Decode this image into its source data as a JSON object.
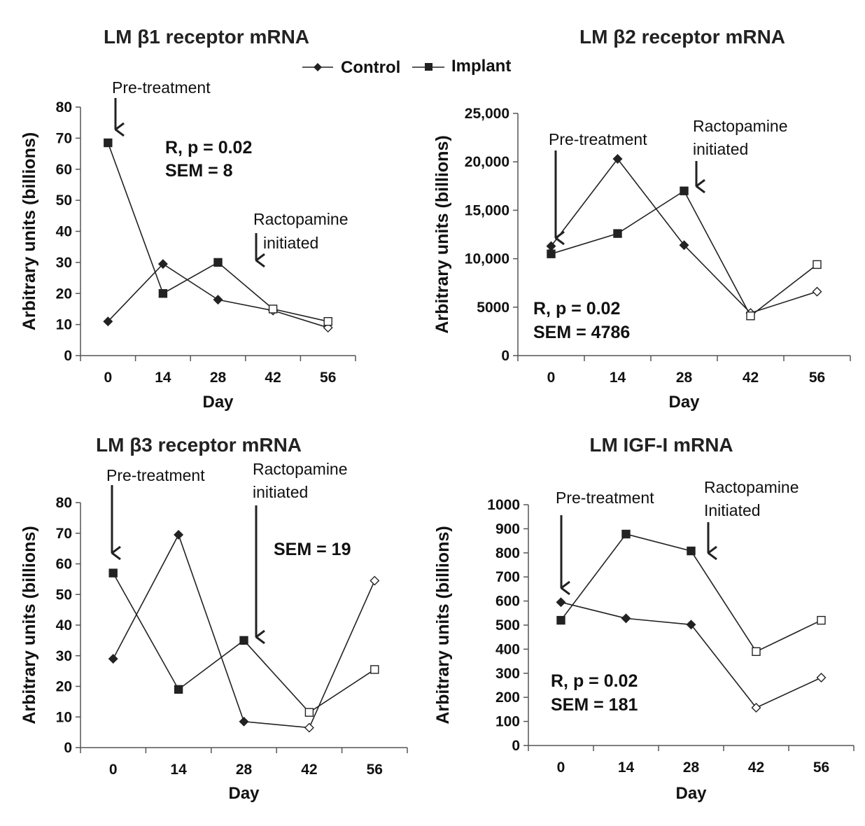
{
  "legend": {
    "entries": [
      {
        "name": "Control",
        "marker": "diamond"
      },
      {
        "name": "Implant",
        "marker": "square"
      }
    ]
  },
  "chart_data": [
    {
      "type": "line",
      "title": "LM β1 receptor mRNA",
      "xlabel": "Day",
      "ylabel": "Arbitrary units (billions)",
      "x": [
        0,
        14,
        28,
        42,
        56
      ],
      "xlim": [
        -7,
        63
      ],
      "ylim": [
        0,
        80
      ],
      "yticks": [
        0,
        10,
        20,
        30,
        40,
        50,
        60,
        70,
        80
      ],
      "ytick_labels": [
        "0",
        "10",
        "20",
        "30",
        "40",
        "50",
        "60",
        "70",
        "80"
      ],
      "series": [
        {
          "name": "Control",
          "marker": "diamond",
          "values": [
            11,
            29.5,
            18,
            14.5,
            9
          ]
        },
        {
          "name": "Implant",
          "marker": "square",
          "values": [
            68.5,
            20,
            30,
            15,
            11
          ]
        }
      ],
      "annotations": [
        {
          "lines": [
            "Pre-treatment"
          ],
          "x": 0,
          "type": "arrow"
        },
        {
          "lines": [
            "Ractopamine",
            "initiated"
          ],
          "x": 31,
          "type": "arrow"
        }
      ],
      "stats": [
        "R, p = 0.02",
        "SEM = 8"
      ]
    },
    {
      "type": "line",
      "title": "LM β2 receptor mRNA",
      "xlabel": "Day",
      "ylabel": "Arbitrary units (billions)",
      "x": [
        0,
        14,
        28,
        42,
        56
      ],
      "xlim": [
        -7,
        63
      ],
      "ylim": [
        0,
        25000
      ],
      "yticks": [
        0,
        5000,
        10000,
        15000,
        20000,
        25000
      ],
      "ytick_labels": [
        "0",
        "5000",
        "10,000",
        "15,000",
        "20,000",
        "25,000"
      ],
      "series": [
        {
          "name": "Control",
          "marker": "diamond",
          "values": [
            11300,
            20300,
            11400,
            4400,
            6600
          ]
        },
        {
          "name": "Implant",
          "marker": "square",
          "values": [
            10500,
            12600,
            17000,
            4100,
            9400
          ]
        }
      ],
      "annotations": [
        {
          "lines": [
            "Pre-treatment"
          ],
          "x": 0,
          "type": "arrow"
        },
        {
          "lines": [
            "Ractopamine",
            "initiated"
          ],
          "x": 31,
          "type": "arrow"
        }
      ],
      "stats": [
        "R, p = 0.02",
        "SEM = 4786"
      ]
    },
    {
      "type": "line",
      "title": "LM β3 receptor mRNA",
      "xlabel": "Day",
      "ylabel": "Arbitrary units (billions)",
      "x": [
        0,
        14,
        28,
        42,
        56
      ],
      "xlim": [
        -7,
        63
      ],
      "ylim": [
        0,
        80
      ],
      "yticks": [
        0,
        10,
        20,
        30,
        40,
        50,
        60,
        70,
        80
      ],
      "ytick_labels": [
        "0",
        "10",
        "20",
        "30",
        "40",
        "50",
        "60",
        "70",
        "80"
      ],
      "series": [
        {
          "name": "Control",
          "marker": "diamond",
          "values": [
            29,
            69.5,
            8.5,
            6.5,
            54.5
          ]
        },
        {
          "name": "Implant",
          "marker": "square",
          "values": [
            57,
            19,
            35,
            11.5,
            25.5
          ]
        }
      ],
      "annotations": [
        {
          "lines": [
            "Pre-treatment"
          ],
          "x": 0,
          "type": "arrow"
        },
        {
          "lines": [
            "Ractopamine",
            "initiated"
          ],
          "x": 31,
          "type": "arrow"
        }
      ],
      "stats": [
        "SEM = 19"
      ]
    },
    {
      "type": "line",
      "title": "LM IGF-I mRNA",
      "xlabel": "Day",
      "ylabel": "Arbitrary units (billions)",
      "x": [
        0,
        14,
        28,
        42,
        56
      ],
      "xlim": [
        -7,
        63
      ],
      "ylim": [
        0,
        1000
      ],
      "yticks": [
        0,
        100,
        200,
        300,
        400,
        500,
        600,
        700,
        800,
        900,
        1000
      ],
      "ytick_labels": [
        "0",
        "100",
        "200",
        "300",
        "400",
        "500",
        "600",
        "700",
        "800",
        "900",
        "1000"
      ],
      "series": [
        {
          "name": "Control",
          "marker": "diamond",
          "values": [
            595,
            528,
            502,
            157,
            282
          ]
        },
        {
          "name": "Implant",
          "marker": "square",
          "values": [
            520,
            878,
            808,
            390,
            520
          ]
        }
      ],
      "annotations": [
        {
          "lines": [
            "Pre-treatment"
          ],
          "x": 0,
          "type": "arrow"
        },
        {
          "lines": [
            "Ractopamine",
            "Initiated"
          ],
          "x": 31,
          "type": "arrow"
        }
      ],
      "stats": [
        "R, p = 0.02",
        "SEM = 181"
      ]
    }
  ]
}
